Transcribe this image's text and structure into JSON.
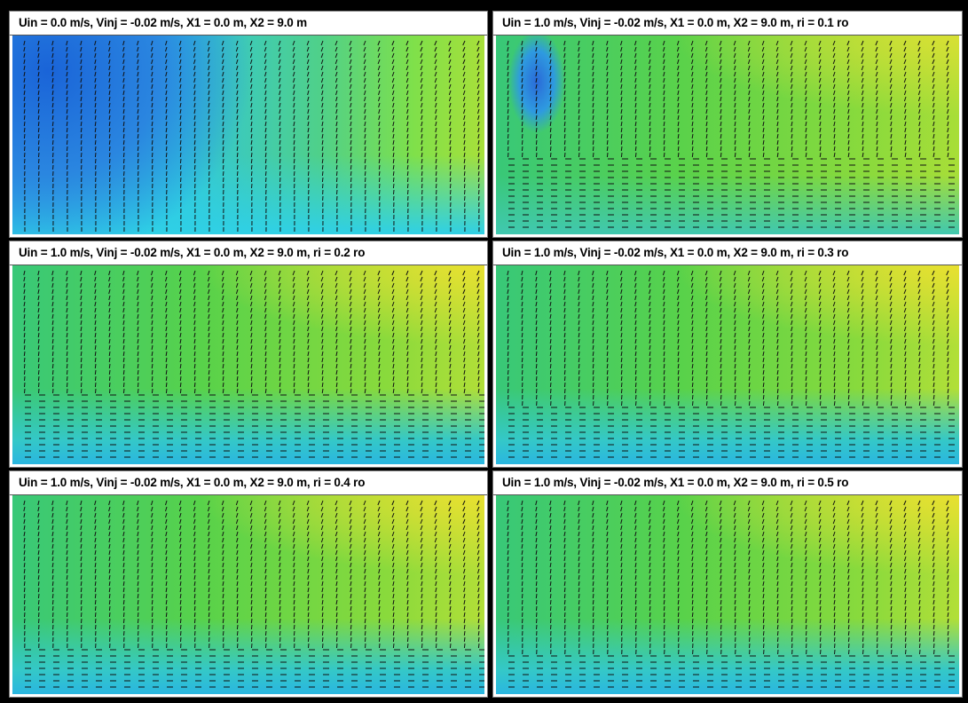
{
  "panels": [
    {
      "title": "Uin = 0.0 m/s, Vinj = -0.02 m/s, X1 = 0.0 m, X2 = 9.0 m"
    },
    {
      "title": "Uin = 1.0 m/s, Vinj = -0.02 m/s, X1 = 0.0 m, X2 = 9.0 m, ri = 0.1 ro"
    },
    {
      "title": "Uin = 1.0 m/s, Vinj = -0.02 m/s, X1 = 0.0 m, X2 = 9.0 m, ri = 0.2 ro"
    },
    {
      "title": "Uin = 1.0 m/s, Vinj = -0.02 m/s, X1 = 0.0 m, X2 = 9.0 m, ri = 0.3 ro"
    },
    {
      "title": "Uin = 1.0 m/s, Vinj = -0.02 m/s, X1 = 0.0 m, X2 = 9.0 m, ri = 0.4 ro"
    },
    {
      "title": "Uin = 1.0 m/s, Vinj = -0.02 m/s, X1 = 0.0 m, X2 = 9.0 m, ri = 0.5 ro"
    }
  ]
}
